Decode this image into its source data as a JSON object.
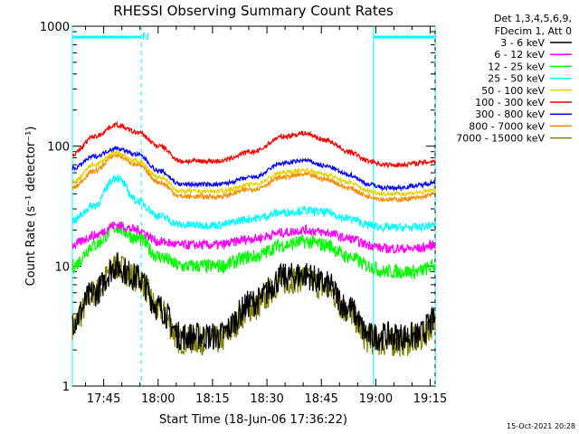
{
  "chart_data": {
    "type": "line",
    "title": "RHESSI Observing Summary Count Rates",
    "xlabel": "Start Time (18-Jun-06 17:36:22)",
    "ylabel": "Count Rate (s⁻¹ detector⁻¹)",
    "y_scale": "log",
    "ylim": [
      1,
      1000
    ],
    "xlim_minutes_after_start": [
      0,
      100
    ],
    "x_ticks": [
      "17:45",
      "18:00",
      "18:15",
      "18:30",
      "18:45",
      "19:00",
      "19:15"
    ],
    "y_ticks": [
      "1",
      "10",
      "100",
      "1000"
    ],
    "legend_header": [
      "Det 1,3,4,5,6,9,",
      "FDecim 1, Att 0"
    ],
    "legend_position": "outside-right-top",
    "footer_date": "15-Oct-2021 20:28",
    "night_flag_marker": "N",
    "series": [
      {
        "name": "3 - 6 keV",
        "color": "#000000"
      },
      {
        "name": "6 - 12 keV",
        "color": "#ff00ff"
      },
      {
        "name": "12 - 25 keV",
        "color": "#00ff00"
      },
      {
        "name": "25 - 50 keV",
        "color": "#00ffff"
      },
      {
        "name": "50 - 100 keV",
        "color": "#e6d200"
      },
      {
        "name": "100 - 300 keV",
        "color": "#ff0000"
      },
      {
        "name": "300 - 800 keV",
        "color": "#0000ff"
      },
      {
        "name": "800 - 7000 keV",
        "color": "#ff8c00"
      },
      {
        "name": "7000 - 15000 keV",
        "color": "#808000"
      }
    ],
    "approx_profiles": {
      "times_min": [
        0,
        6,
        12,
        18,
        24,
        30,
        40,
        50,
        58,
        64,
        70,
        76,
        82,
        86,
        90,
        95,
        100
      ],
      "100 - 300 keV": [
        85,
        120,
        150,
        130,
        100,
        75,
        75,
        90,
        120,
        128,
        112,
        90,
        75,
        70,
        70,
        72,
        75
      ],
      "300 - 800 keV": [
        65,
        82,
        96,
        85,
        62,
        48,
        48,
        55,
        72,
        76,
        68,
        58,
        48,
        45,
        45,
        47,
        50
      ],
      "50 - 100 keV": [
        50,
        70,
        88,
        75,
        55,
        42,
        42,
        48,
        60,
        63,
        58,
        50,
        42,
        40,
        40,
        41,
        43
      ],
      "800 - 7000 keV": [
        45,
        62,
        84,
        70,
        50,
        38,
        38,
        44,
        55,
        58,
        53,
        45,
        38,
        36,
        36,
        37,
        40
      ],
      "25 - 50 keV": [
        24,
        32,
        55,
        35,
        26,
        22,
        22,
        25,
        28,
        29,
        28,
        25,
        22,
        21,
        21,
        21,
        22
      ],
      "6 - 12 keV": [
        15,
        18,
        22,
        20,
        16,
        15,
        15,
        17,
        19,
        20,
        19,
        17,
        15,
        14,
        14,
        14,
        15
      ],
      "12 - 25 keV": [
        10,
        15,
        21,
        17,
        12,
        10,
        10,
        12,
        15,
        16,
        15,
        12,
        10,
        9,
        9,
        9,
        10
      ],
      "3 - 6 keV": [
        3.5,
        6,
        10,
        8,
        4.5,
        2.6,
        2.6,
        5,
        8,
        8.5,
        7,
        4.5,
        2.6,
        2.6,
        2.6,
        2.6,
        3.5
      ],
      "7000 - 15000 keV": [
        3.2,
        6,
        10,
        8,
        4.3,
        2.4,
        2.4,
        4.5,
        7.5,
        8,
        6.5,
        4.2,
        2.4,
        2.3,
        2.3,
        2.4,
        3.3
      ]
    },
    "saa_intervals_minutes": [
      [
        0,
        19
      ],
      [
        83,
        100
      ]
    ]
  }
}
